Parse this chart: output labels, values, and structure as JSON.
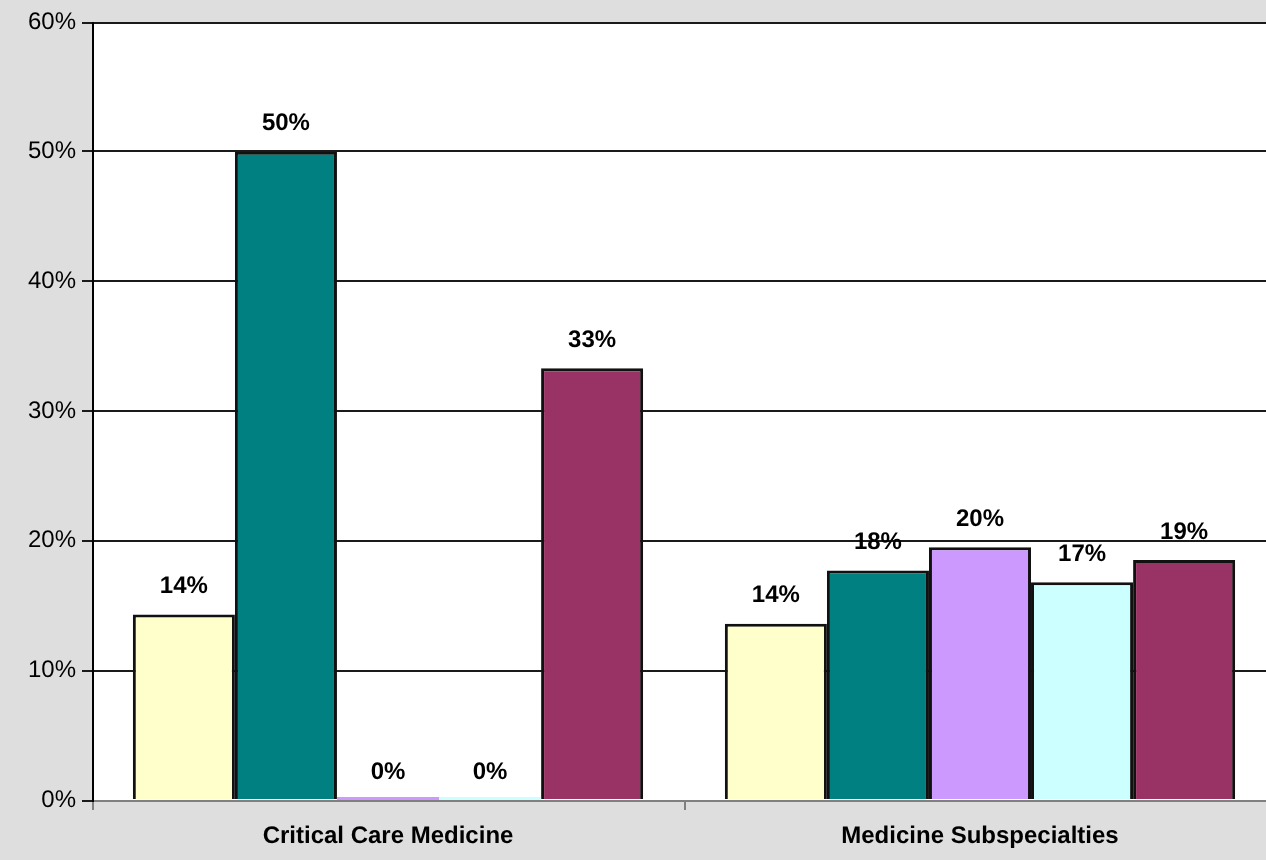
{
  "chart_data": {
    "type": "bar",
    "categories": [
      "Critical Care Medicine",
      "Medicine Subspecialties"
    ],
    "series": [
      {
        "color": "#ffffcc",
        "values": [
          14.3,
          13.6
        ],
        "value_labels": [
          "14%",
          "14%"
        ]
      },
      {
        "color": "#008080",
        "values": [
          50,
          17.7
        ],
        "value_labels": [
          "50%",
          "18%"
        ]
      },
      {
        "color": "#cc99ff",
        "values": [
          0,
          19.5
        ],
        "value_labels": [
          "0%",
          "20%"
        ]
      },
      {
        "color": "#ccffff",
        "values": [
          0,
          16.8
        ],
        "value_labels": [
          "0%",
          "17%"
        ]
      },
      {
        "color": "#993366",
        "values": [
          33.3,
          18.5
        ],
        "value_labels": [
          "33%",
          "19%"
        ]
      }
    ],
    "ylim": [
      0,
      60
    ],
    "yticks": [
      {
        "value": 0,
        "label": "0%"
      },
      {
        "value": 10,
        "label": "10%"
      },
      {
        "value": 20,
        "label": "20%"
      },
      {
        "value": 30,
        "label": "30%"
      },
      {
        "value": 40,
        "label": "40%"
      },
      {
        "value": 50,
        "label": "50%"
      },
      {
        "value": 60,
        "label": "60%"
      }
    ],
    "grid": "y"
  }
}
